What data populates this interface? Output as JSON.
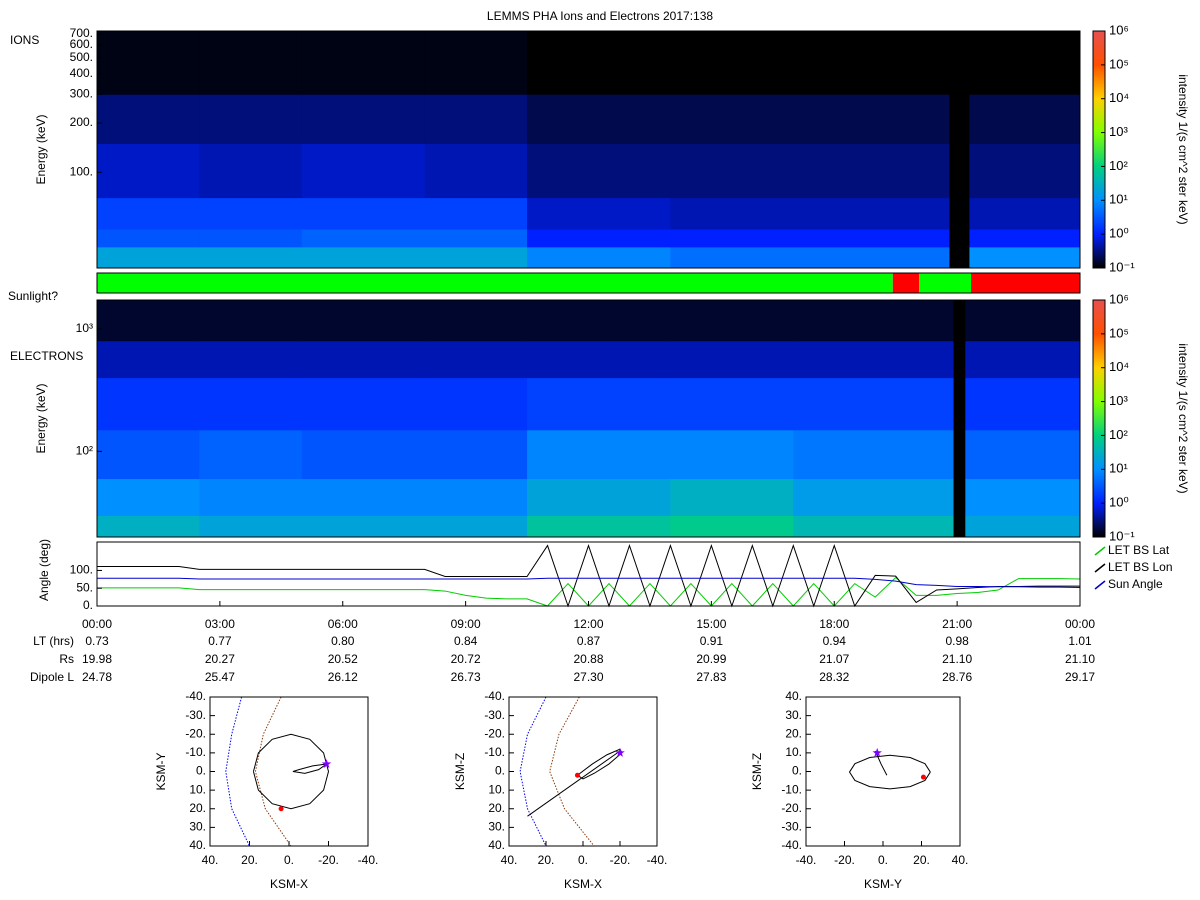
{
  "chart_data": [
    {
      "type": "heatmap",
      "title": "LEMMS PHA Ions and Electrons  2017:138",
      "label": "IONS",
      "ylabel": "Energy (keV)",
      "x": [
        0,
        2.5,
        5,
        8,
        10.5,
        14,
        17,
        20.8,
        21.3,
        24
      ],
      "y": [
        26,
        35,
        45,
        70,
        150,
        300,
        730
      ],
      "z": [
        [
          20,
          20,
          20,
          20,
          8,
          5,
          5,
          null,
          10
        ],
        [
          3,
          3,
          4,
          4,
          1,
          1,
          1,
          null,
          1
        ],
        [
          2,
          2,
          2,
          2,
          0.6,
          0.5,
          0.5,
          null,
          0.5
        ],
        [
          0.6,
          0.5,
          0.6,
          0.5,
          0.3,
          0.3,
          0.3,
          null,
          0.3
        ],
        [
          0.3,
          0.3,
          0.3,
          0.3,
          0.2,
          0.2,
          0.2,
          null,
          0.2
        ],
        [
          0.12,
          0.12,
          0.12,
          0.12,
          0.1,
          0.1,
          0.1,
          null,
          0.1
        ]
      ],
      "xlim": [
        0,
        24
      ],
      "ylim": [
        26,
        730
      ],
      "ylog": true,
      "yticks": [
        {
          "value": 100,
          "label": "100."
        },
        {
          "value": 200,
          "label": "200."
        },
        {
          "value": 300,
          "label": "300."
        },
        {
          "value": 400,
          "label": "400."
        },
        {
          "value": 500,
          "label": "500."
        },
        {
          "value": 600,
          "label": "600."
        },
        {
          "value": 700,
          "label": "700."
        }
      ],
      "clim": [
        0.1,
        1000000
      ],
      "clabel": "intensity 1/(s cm^2 ster keV)",
      "cticks": [
        {
          "value": 0.1,
          "label": "10⁻¹"
        },
        {
          "value": 1,
          "label": "10⁰"
        },
        {
          "value": 10,
          "label": "10¹"
        },
        {
          "value": 100,
          "label": "10²"
        },
        {
          "value": 1000,
          "label": "10³"
        },
        {
          "value": 10000,
          "label": "10⁴"
        },
        {
          "value": 100000,
          "label": "10⁵"
        },
        {
          "value": 1000000,
          "label": "10⁶"
        }
      ],
      "colorscale": [
        "#000000",
        "#0020ff",
        "#0090ff",
        "#00d080",
        "#80ff00",
        "#ffd000",
        "#ff5000",
        "#e85050"
      ]
    },
    {
      "type": "timeline",
      "label": "Sunlight?",
      "xlim": [
        0,
        24
      ],
      "segments": [
        {
          "start": 0,
          "end": 19.43,
          "color": "#00ff00"
        },
        {
          "start": 19.43,
          "end": 20.07,
          "color": "#ff0000"
        },
        {
          "start": 20.07,
          "end": 21.34,
          "color": "#00ff00"
        },
        {
          "start": 21.34,
          "end": 24,
          "color": "#ff0000"
        }
      ]
    },
    {
      "type": "heatmap",
      "label": "ELECTRONS",
      "ylabel": "Energy (keV)",
      "x": [
        0,
        2.5,
        5,
        8,
        10.5,
        14,
        17,
        20.9,
        21.2,
        24
      ],
      "y": [
        20,
        30,
        60,
        150,
        400,
        800,
        1720
      ],
      "z": [
        [
          30,
          20,
          20,
          20,
          60,
          80,
          40,
          null,
          20
        ],
        [
          10,
          8,
          8,
          8,
          20,
          30,
          15,
          null,
          10
        ],
        [
          3,
          4,
          3,
          3,
          8,
          8,
          6,
          null,
          4
        ],
        [
          1.5,
          1.5,
          1.5,
          1.5,
          2,
          2,
          2,
          null,
          1.5
        ],
        [
          0.5,
          0.5,
          0.5,
          0.5,
          0.5,
          0.5,
          0.5,
          null,
          0.5
        ],
        [
          0.15,
          0.15,
          0.15,
          0.15,
          0.15,
          0.15,
          0.15,
          null,
          0.15
        ]
      ],
      "xlim": [
        0,
        24
      ],
      "ylim": [
        20,
        1720
      ],
      "ylog": true,
      "yticks": [
        {
          "value": 100,
          "label": "10²"
        },
        {
          "value": 1000,
          "label": "10³"
        }
      ],
      "clim": [
        0.1,
        1000000
      ],
      "clabel": "intensity 1/(s cm^2 ster keV)",
      "cticks": [
        {
          "value": 0.1,
          "label": "10⁻¹"
        },
        {
          "value": 1,
          "label": "10⁰"
        },
        {
          "value": 10,
          "label": "10¹"
        },
        {
          "value": 100,
          "label": "10²"
        },
        {
          "value": 1000,
          "label": "10³"
        },
        {
          "value": 10000,
          "label": "10⁴"
        },
        {
          "value": 100000,
          "label": "10⁵"
        },
        {
          "value": 1000000,
          "label": "10⁶"
        }
      ],
      "colorscale": [
        "#000000",
        "#0020ff",
        "#0090ff",
        "#00d080",
        "#80ff00",
        "#ffd000",
        "#ff5000",
        "#e85050"
      ]
    },
    {
      "type": "line",
      "ylabel": "Angle (deg)",
      "legend": "right",
      "xlim": [
        0,
        24
      ],
      "ylim": [
        0,
        180
      ],
      "xticks": [
        {
          "value": 0,
          "label": "00:00"
        },
        {
          "value": 3,
          "label": "03:00"
        },
        {
          "value": 6,
          "label": "06:00"
        },
        {
          "value": 9,
          "label": "09:00"
        },
        {
          "value": 12,
          "label": "12:00"
        },
        {
          "value": 15,
          "label": "15:00"
        },
        {
          "value": 18,
          "label": "18:00"
        },
        {
          "value": 21,
          "label": "21:00"
        },
        {
          "value": 24,
          "label": "00:00"
        }
      ],
      "yticks": [
        {
          "value": 0,
          "label": "0."
        },
        {
          "value": 50,
          "label": "50."
        },
        {
          "value": 100,
          "label": "100."
        }
      ],
      "x": [
        0,
        0.5,
        1,
        1.5,
        2,
        2.5,
        3,
        3.5,
        4,
        4.5,
        5,
        5.5,
        6,
        6.5,
        7,
        7.5,
        8,
        8.5,
        9,
        9.5,
        10,
        10.5,
        11,
        11.5,
        12,
        12.5,
        13,
        13.5,
        14,
        14.5,
        15,
        15.5,
        16,
        16.5,
        17,
        17.5,
        18,
        18.5,
        19,
        19.5,
        20,
        20.5,
        21,
        21.5,
        22,
        22.5,
        23,
        23.5,
        24
      ],
      "series": [
        {
          "name": "LET BS Lat",
          "color": "#00cc00",
          "values": [
            51,
            51,
            51,
            51,
            51,
            46,
            46,
            46,
            46,
            46,
            46,
            46,
            46,
            46,
            46,
            46,
            46,
            42,
            30,
            22,
            20,
            20,
            0,
            63,
            0,
            63,
            0,
            63,
            0,
            63,
            0,
            63,
            0,
            63,
            0,
            63,
            0,
            63,
            25,
            80,
            30,
            30,
            35,
            38,
            45,
            77,
            77,
            77,
            76
          ]
        },
        {
          "name": "LET BS Lon",
          "color": "#000000",
          "values": [
            111,
            111,
            111,
            111,
            111,
            103,
            103,
            103,
            103,
            103,
            103,
            103,
            103,
            103,
            103,
            103,
            103,
            83,
            83,
            83,
            83,
            83,
            170,
            0,
            170,
            0,
            170,
            0,
            170,
            0,
            170,
            0,
            170,
            0,
            170,
            0,
            170,
            0,
            86,
            84,
            10,
            45,
            48,
            52,
            55,
            55,
            56,
            56,
            56
          ]
        },
        {
          "name": "Sun Angle",
          "color": "#0000cc",
          "values": [
            78,
            78,
            78,
            78,
            78,
            76,
            76,
            76,
            76,
            76,
            76,
            76,
            76,
            76,
            76,
            76,
            76,
            76,
            76,
            76,
            76,
            76,
            78,
            78,
            78,
            78,
            78,
            78,
            78,
            78,
            78,
            78,
            78,
            78,
            78,
            78,
            78,
            78,
            75,
            70,
            60,
            58,
            55,
            55,
            54,
            54,
            53,
            53,
            52
          ]
        }
      ]
    },
    {
      "type": "table",
      "rows": [
        {
          "label": "LT (hrs)",
          "values": [
            "0.73",
            "0.77",
            "0.80",
            "0.84",
            "0.87",
            "0.91",
            "0.94",
            "0.98",
            "1.01"
          ]
        },
        {
          "label": "Rs",
          "values": [
            "19.98",
            "20.27",
            "20.52",
            "20.72",
            "20.88",
            "20.99",
            "21.07",
            "21.10",
            "21.10"
          ]
        },
        {
          "label": "Dipole L",
          "values": [
            "24.78",
            "25.47",
            "26.12",
            "26.73",
            "27.30",
            "27.83",
            "28.32",
            "28.76",
            "29.17"
          ]
        }
      ]
    },
    {
      "type": "line",
      "xlabel": "KSM-X",
      "ylabel": "KSM-Y",
      "xlim": [
        40,
        -40
      ],
      "ylim": [
        40,
        -40
      ],
      "xticks": [
        {
          "value": 40,
          "label": "40."
        },
        {
          "value": 20,
          "label": "20."
        },
        {
          "value": 0,
          "label": "0."
        },
        {
          "value": -20,
          "label": "-20."
        },
        {
          "value": -40,
          "label": "-40."
        }
      ],
      "yticks": [
        {
          "value": -40,
          "label": "-40."
        },
        {
          "value": -30,
          "label": "-30."
        },
        {
          "value": -20,
          "label": "-20."
        },
        {
          "value": -10,
          "label": "-10."
        },
        {
          "value": 0,
          "label": "0."
        },
        {
          "value": 10,
          "label": "10."
        },
        {
          "value": 20,
          "label": "20."
        },
        {
          "value": 30,
          "label": "30."
        },
        {
          "value": 40,
          "label": "40."
        }
      ],
      "series": [
        {
          "color": "#0000ff",
          "dash": true,
          "x": [
            24,
            29,
            32,
            29,
            20
          ],
          "values": [
            -40,
            -20,
            0,
            20,
            40
          ]
        },
        {
          "color": "#8b3a0a",
          "dash": true,
          "x": [
            4,
            13,
            17,
            12,
            -1
          ],
          "values": [
            -40,
            -20,
            0,
            20,
            40
          ]
        },
        {
          "color": "#000000",
          "x": [
            18,
            15.5,
            8.5,
            -1,
            -10.5,
            -17.5,
            -20,
            -17.5,
            -10.5,
            -1,
            8.5,
            15.5,
            18
          ],
          "values": [
            0,
            10,
            17.3,
            20,
            17.3,
            10,
            0,
            -10,
            -17.3,
            -20,
            -17.3,
            -10,
            0
          ]
        },
        {
          "color": "#000000",
          "x": [
            -19,
            -12,
            -5,
            -2,
            -8,
            -15,
            -19
          ],
          "values": [
            -4,
            -3,
            -1,
            0,
            1,
            -1,
            -4
          ]
        }
      ],
      "points": [
        {
          "x": 4,
          "y": 20,
          "color": "#ff0000",
          "marker": "circle"
        },
        {
          "x": -19,
          "y": -4,
          "color": "#8000ff",
          "marker": "star"
        }
      ]
    },
    {
      "type": "line",
      "xlabel": "KSM-X",
      "ylabel": "KSM-Z",
      "xlim": [
        40,
        -40
      ],
      "ylim": [
        40,
        -40
      ],
      "xticks": [
        {
          "value": 40,
          "label": "40."
        },
        {
          "value": 20,
          "label": "20."
        },
        {
          "value": 0,
          "label": "0."
        },
        {
          "value": -20,
          "label": "-20."
        },
        {
          "value": -40,
          "label": "-40."
        }
      ],
      "yticks": [
        {
          "value": -40,
          "label": "-40."
        },
        {
          "value": -30,
          "label": "-30."
        },
        {
          "value": -20,
          "label": "-20."
        },
        {
          "value": -10,
          "label": "-10."
        },
        {
          "value": 0,
          "label": "0."
        },
        {
          "value": 10,
          "label": "10."
        },
        {
          "value": 20,
          "label": "20."
        },
        {
          "value": 30,
          "label": "30."
        },
        {
          "value": 40,
          "label": "40."
        }
      ],
      "series": [
        {
          "color": "#0000ff",
          "dash": true,
          "x": [
            20,
            30,
            34,
            30,
            20
          ],
          "values": [
            -40,
            -20,
            0,
            20,
            40
          ]
        },
        {
          "color": "#8b3a0a",
          "dash": true,
          "x": [
            2,
            13,
            18,
            10,
            -6
          ],
          "values": [
            -40,
            -20,
            0,
            20,
            40
          ]
        },
        {
          "color": "#000000",
          "x": [
            3,
            -5,
            -13,
            -20,
            -21,
            -14,
            -6,
            0,
            3
          ],
          "values": [
            2,
            -4,
            -9,
            -12,
            -10,
            -4,
            1,
            4,
            2
          ]
        },
        {
          "color": "#000000",
          "x": [
            30,
            -20
          ],
          "values": [
            24,
            -11
          ]
        }
      ],
      "points": [
        {
          "x": 3,
          "y": 2,
          "color": "#ff0000",
          "marker": "circle"
        },
        {
          "x": -20,
          "y": -10,
          "color": "#8000ff",
          "marker": "star"
        }
      ]
    },
    {
      "type": "line",
      "xlabel": "KSM-Y",
      "ylabel": "KSM-Z",
      "xlim": [
        -40,
        40
      ],
      "ylim": [
        -40,
        40
      ],
      "xticks": [
        {
          "value": -40,
          "label": "-40."
        },
        {
          "value": -20,
          "label": "-20."
        },
        {
          "value": 0,
          "label": "0."
        },
        {
          "value": 20,
          "label": "20."
        },
        {
          "value": 40,
          "label": "40."
        }
      ],
      "yticks": [
        {
          "value": 40,
          "label": "40."
        },
        {
          "value": 30,
          "label": "30."
        },
        {
          "value": 20,
          "label": "20."
        },
        {
          "value": 10,
          "label": "10."
        },
        {
          "value": 0,
          "label": "0."
        },
        {
          "value": -10,
          "label": "-10."
        },
        {
          "value": -20,
          "label": "-20."
        },
        {
          "value": -30,
          "label": "-30."
        },
        {
          "value": -40,
          "label": "-40."
        }
      ],
      "series": [
        {
          "color": "#000000",
          "x": [
            24.6,
            21.8,
            14.1,
            3.6,
            -6.9,
            -14.6,
            -17.4,
            -14.6,
            -6.9,
            3.6,
            14.1,
            21.8,
            24.6
          ],
          "values": [
            -0.3,
            4.2,
            7.5,
            8.7,
            7.5,
            4.2,
            -0.3,
            -4.8,
            -8.1,
            -9.3,
            -8.1,
            -4.8,
            -0.3
          ]
        },
        {
          "color": "#000000",
          "x": [
            -4,
            -1,
            2
          ],
          "values": [
            11,
            4,
            -2
          ]
        }
      ],
      "points": [
        {
          "x": 21,
          "y": -3,
          "color": "#ff0000",
          "marker": "circle"
        },
        {
          "x": -3,
          "y": 10,
          "color": "#8000ff",
          "marker": "star"
        }
      ]
    }
  ]
}
